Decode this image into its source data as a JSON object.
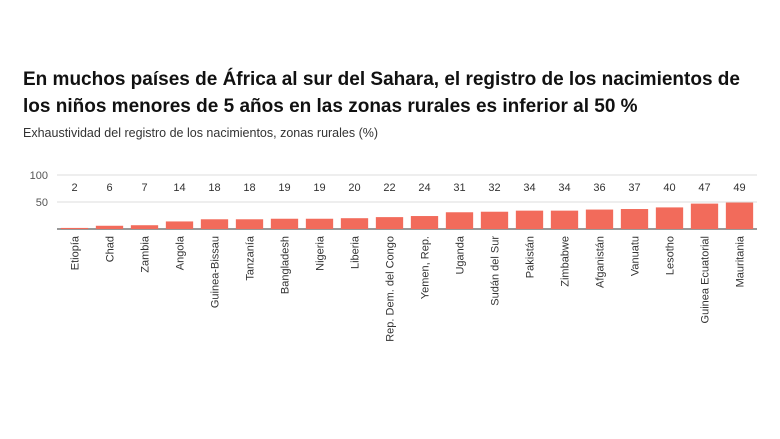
{
  "chart_data": {
    "type": "bar",
    "title": "En muchos países de África al sur del Sahara, el registro de los nacimientos de los niños menores de 5 años en las zonas rurales es inferior al 50 %",
    "subtitle": "Exhaustividad del registro de los nacimientos, zonas rurales (%)",
    "xlabel": "",
    "ylabel": "",
    "ylim": [
      0,
      100
    ],
    "yticks": [
      50,
      100
    ],
    "grid": true,
    "legend": "none",
    "bar_color": "#f26b5b",
    "categories": [
      "Etiopía",
      "Chad",
      "Zambia",
      "Angola",
      "Guinea-Bissau",
      "Tanzanía",
      "Bangladesh",
      "Nigeria",
      "Liberia",
      "Rep. Dem. del Congo",
      "Yemen, Rep.",
      "Uganda",
      "Sudán del Sur",
      "Pakistán",
      "Zimbabwe",
      "Afganistán",
      "Vanuatu",
      "Lesotho",
      "Guinea Ecuatorial",
      "Mauritania"
    ],
    "values": [
      2,
      6,
      7,
      14,
      18,
      18,
      19,
      19,
      20,
      22,
      24,
      31,
      32,
      34,
      34,
      36,
      37,
      40,
      47,
      49
    ]
  }
}
